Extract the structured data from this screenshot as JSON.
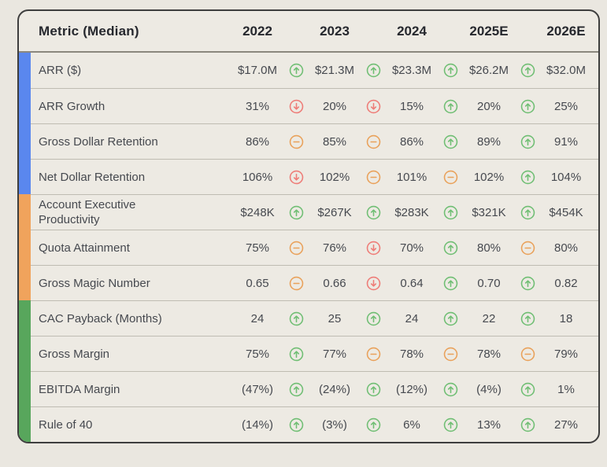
{
  "chart_data": {
    "type": "table",
    "columns": [
      "Metric (Median)",
      "2022",
      "2023",
      "2024",
      "2025E",
      "2026E"
    ],
    "trend_colors": {
      "up": "#6fbe73",
      "down": "#ee7c77",
      "flat": "#e9a15a"
    },
    "groups": [
      {
        "band_color": "#5a87ee",
        "rows": [
          {
            "label": "ARR ($)",
            "values": [
              "$17.0M",
              "$21.3M",
              "$23.3M",
              "$26.2M",
              "$32.0M"
            ],
            "trends": [
              "up",
              "up",
              "up",
              "up"
            ]
          },
          {
            "label": "ARR Growth",
            "values": [
              "31%",
              "20%",
              "15%",
              "20%",
              "25%"
            ],
            "trends": [
              "down",
              "down",
              "up",
              "up"
            ]
          },
          {
            "label": "Gross Dollar Retention",
            "values": [
              "86%",
              "85%",
              "86%",
              "89%",
              "91%"
            ],
            "trends": [
              "flat",
              "flat",
              "up",
              "up"
            ]
          },
          {
            "label": "Net Dollar Retention",
            "values": [
              "106%",
              "102%",
              "101%",
              "102%",
              "104%"
            ],
            "trends": [
              "down",
              "flat",
              "flat",
              "up"
            ]
          }
        ]
      },
      {
        "band_color": "#f0a35c",
        "rows": [
          {
            "label": "Account Executive Productivity",
            "values": [
              "$248K",
              "$267K",
              "$283K",
              "$321K",
              "$454K"
            ],
            "trends": [
              "up",
              "up",
              "up",
              "up"
            ]
          },
          {
            "label": "Quota Attainment",
            "values": [
              "75%",
              "76%",
              "70%",
              "80%",
              "80%"
            ],
            "trends": [
              "flat",
              "down",
              "up",
              "flat"
            ]
          },
          {
            "label": "Gross Magic Number",
            "values": [
              "0.65",
              "0.66",
              "0.64",
              "0.70",
              "0.82"
            ],
            "trends": [
              "flat",
              "down",
              "up",
              "up"
            ]
          }
        ]
      },
      {
        "band_color": "#58a65c",
        "rows": [
          {
            "label": "CAC Payback (Months)",
            "values": [
              "24",
              "25",
              "24",
              "22",
              "18"
            ],
            "trends": [
              "up",
              "up",
              "up",
              "up"
            ]
          },
          {
            "label": "Gross Margin",
            "values": [
              "75%",
              "77%",
              "78%",
              "78%",
              "79%"
            ],
            "trends": [
              "up",
              "flat",
              "flat",
              "flat"
            ]
          },
          {
            "label": "EBITDA Margin",
            "values": [
              "(47%)",
              "(24%)",
              "(12%)",
              "(4%)",
              "1%"
            ],
            "trends": [
              "up",
              "up",
              "up",
              "up"
            ]
          },
          {
            "label": "Rule of 40",
            "values": [
              "(14%)",
              "(3%)",
              "6%",
              "13%",
              "27%"
            ],
            "trends": [
              "up",
              "up",
              "up",
              "up"
            ]
          }
        ]
      }
    ]
  }
}
